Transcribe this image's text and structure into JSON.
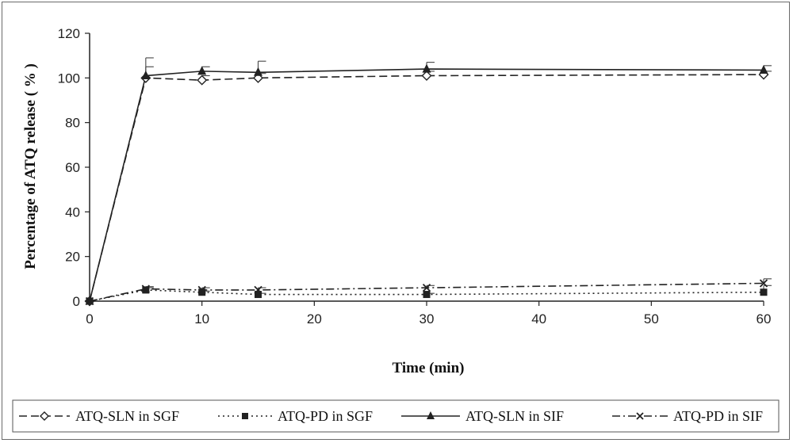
{
  "chart_data": {
    "type": "line",
    "xlabel": "Time (min)",
    "ylabel": "Percentage of ATQ release ( % )",
    "xlim": [
      0,
      60
    ],
    "ylim": [
      0,
      120
    ],
    "xticks": [
      0,
      10,
      20,
      30,
      40,
      50,
      60
    ],
    "yticks": [
      0,
      20,
      40,
      60,
      80,
      100,
      120
    ],
    "grid": false,
    "legend_position": "bottom",
    "x": [
      0,
      5,
      10,
      15,
      30,
      60
    ],
    "series": [
      {
        "name": "ATQ-SLN in SGF",
        "values": [
          0,
          100,
          99,
          100,
          101,
          101.5
        ],
        "errors": [
          0,
          5,
          2,
          2,
          2,
          1.5
        ],
        "marker": "diamond-open",
        "dash": "dashed",
        "color": "#222222"
      },
      {
        "name": "ATQ-PD in SGF",
        "values": [
          0,
          5,
          4,
          3,
          3,
          4
        ],
        "errors": [
          0,
          1,
          0.5,
          0.5,
          0.5,
          3
        ],
        "marker": "square",
        "dash": "dotted",
        "color": "#222222"
      },
      {
        "name": "ATQ-SLN in SIF",
        "values": [
          0,
          101,
          103,
          102.5,
          104,
          103.5
        ],
        "errors": [
          0,
          8,
          2,
          5,
          3,
          2
        ],
        "marker": "triangle",
        "dash": "solid",
        "color": "#222222"
      },
      {
        "name": "ATQ-PD in SIF",
        "values": [
          0,
          5.5,
          5,
          5,
          6,
          8
        ],
        "errors": [
          0,
          1,
          1,
          1,
          1,
          2
        ],
        "marker": "x",
        "dash": "dashdot",
        "color": "#222222"
      }
    ]
  }
}
